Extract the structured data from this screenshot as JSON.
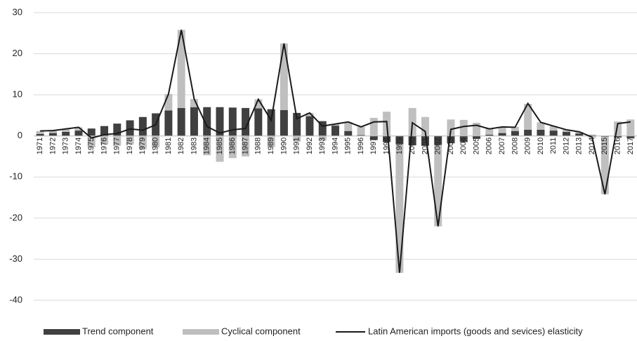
{
  "chart_data": {
    "type": "stacked-bar-line",
    "categories": [
      "1971",
      "1972",
      "1973",
      "1974",
      "1975",
      "1976",
      "1977",
      "1978",
      "1979",
      "1980",
      "1981",
      "1982",
      "1983",
      "1984",
      "1985",
      "1986",
      "1987",
      "1988",
      "1989",
      "1990",
      "1991",
      "1992",
      "1993",
      "1994",
      "1995",
      "1996",
      "1997",
      "1998",
      "1999",
      "2000",
      "2001",
      "2002",
      "2003",
      "2004",
      "2005",
      "2006",
      "2007",
      "2008",
      "2009",
      "2010",
      "2011",
      "2012",
      "2013",
      "2014",
      "2015",
      "2016",
      "2017"
    ],
    "series": [
      {
        "name": "Trend component",
        "type": "bar",
        "color": "#404040",
        "values": [
          0.5,
          0.7,
          1.0,
          1.3,
          1.8,
          2.4,
          3.0,
          3.8,
          4.6,
          5.5,
          6.2,
          6.8,
          7.0,
          7.0,
          7.0,
          6.9,
          6.8,
          6.7,
          6.5,
          6.3,
          5.6,
          4.8,
          3.6,
          2.5,
          1.2,
          0.2,
          -1.0,
          -1.5,
          -2.0,
          -2.3,
          -2.4,
          -2.2,
          -1.8,
          -1.5,
          -0.7,
          0.3,
          0.7,
          1.2,
          1.5,
          1.5,
          1.3,
          1.0,
          0.6,
          0.2,
          -0.2,
          -0.4,
          -0.6
        ]
      },
      {
        "name": "Cyclical component",
        "type": "bar",
        "color": "#bfbfbf",
        "values": [
          0.7,
          0.6,
          0.7,
          0.8,
          -2.8,
          -2.1,
          -2.4,
          -2.1,
          -3.2,
          -2.8,
          4.0,
          19.0,
          2.0,
          -4.7,
          -6.3,
          -5.4,
          -5.0,
          2.2,
          -2.7,
          16.2,
          -1.4,
          0.8,
          -1.2,
          0.4,
          2.2,
          2.0,
          4.4,
          5.9,
          -31.3,
          6.8,
          4.6,
          -19.8,
          4.0,
          3.9,
          3.2,
          1.5,
          1.5,
          1.0,
          6.3,
          1.8,
          1.1,
          0.6,
          0.4,
          -0.5,
          -14.0,
          3.5,
          4.0
        ]
      },
      {
        "name": "Latin American imports (goods and sevices) elasticity",
        "type": "line",
        "color": "#1a1a1a",
        "values": [
          1.2,
          1.3,
          1.7,
          2.1,
          -0.5,
          0.3,
          0.6,
          1.7,
          1.4,
          2.7,
          10.2,
          25.8,
          9.0,
          2.3,
          0.7,
          1.5,
          1.8,
          8.9,
          3.8,
          22.5,
          4.2,
          5.6,
          2.4,
          2.9,
          3.4,
          2.2,
          3.4,
          3.5,
          -33.3,
          3.2,
          1.1,
          -22.0,
          1.6,
          2.3,
          2.6,
          1.7,
          2.2,
          2.1,
          7.9,
          3.3,
          2.4,
          1.5,
          1.0,
          -0.3,
          -14.2,
          3.0,
          3.4
        ]
      }
    ],
    "ylim": [
      -40,
      30
    ],
    "yticks": [
      -40,
      -30,
      -20,
      -10,
      0,
      10,
      20,
      30
    ],
    "grid": true,
    "legend": "bottom"
  }
}
